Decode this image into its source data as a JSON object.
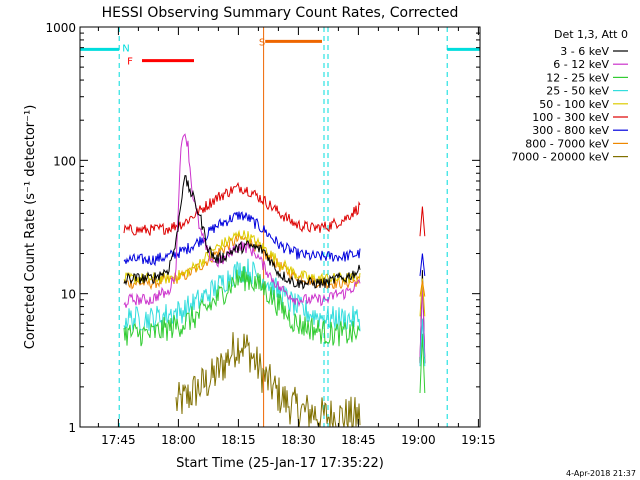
{
  "chart_data": {
    "type": "line",
    "title": "HESSI Observing Summary Count Rates, Corrected",
    "xlabel": "Start Time (25-Jan-17 17:35:22)",
    "ylabel": "Corrected Count Rate (s⁻¹ detector⁻¹)",
    "x_unit": "minutes after 17:35:22",
    "xlim": [
      0,
      100
    ],
    "ylim": [
      1,
      1000
    ],
    "y_scale": "log",
    "xticks": [
      {
        "x": 9.6,
        "label": "17:45"
      },
      {
        "x": 24.6,
        "label": "18:00"
      },
      {
        "x": 39.6,
        "label": "18:15"
      },
      {
        "x": 54.6,
        "label": "18:30"
      },
      {
        "x": 69.6,
        "label": "18:45"
      },
      {
        "x": 84.6,
        "label": "19:00"
      },
      {
        "x": 99.6,
        "label": "19:15"
      }
    ],
    "yticks": [
      {
        "y": 1,
        "label": "1"
      },
      {
        "y": 10,
        "label": "10"
      },
      {
        "y": 100,
        "label": "100"
      },
      {
        "y": 1000,
        "label": "1000"
      }
    ],
    "legend_header": "Det 1,3, Att 0",
    "legend_placement": "outside-right",
    "series": [
      {
        "name": "3 - 6 keV",
        "color": "#000000",
        "x": [
          11,
          12,
          13,
          18,
          20,
          22,
          24,
          26,
          28,
          30,
          32,
          34,
          36,
          38,
          40,
          42,
          44,
          46,
          48,
          50,
          52,
          54,
          56,
          58,
          60,
          62,
          64,
          66,
          68,
          70
        ],
        "y": [
          12,
          13,
          13,
          13,
          14,
          15,
          24,
          75,
          55,
          38,
          22,
          18,
          19,
          21,
          22,
          23,
          22,
          21,
          17,
          14,
          13,
          12,
          12,
          12,
          12,
          12,
          13,
          13,
          14,
          15
        ]
      },
      {
        "name": "6 - 12 keV",
        "color": "#cc33cc",
        "x": [
          11,
          12,
          13,
          18,
          20,
          22,
          24,
          25,
          26,
          27,
          28,
          30,
          32,
          34,
          36,
          38,
          40,
          42,
          44,
          46,
          48,
          50,
          52,
          54,
          56,
          58,
          60,
          62,
          64,
          66,
          68,
          70
        ],
        "y": [
          8,
          9,
          9,
          9,
          10,
          10,
          15,
          100,
          170,
          130,
          60,
          30,
          20,
          17,
          18,
          21,
          23,
          22,
          20,
          16,
          13,
          11,
          10,
          9,
          9,
          9,
          9,
          9,
          10,
          10,
          11,
          12
        ]
      },
      {
        "name": "12 - 25 keV",
        "color": "#33cc33",
        "x": [
          11,
          14,
          18,
          22,
          26,
          30,
          34,
          38,
          40,
          42,
          46,
          50,
          54,
          58,
          62,
          66,
          70
        ],
        "y": [
          5,
          5,
          5,
          5.5,
          6,
          7,
          9,
          12,
          13,
          13,
          11,
          8,
          6,
          5.5,
          5,
          5,
          5
        ]
      },
      {
        "name": "25 - 50 keV",
        "color": "#33dddd",
        "x": [
          11,
          14,
          18,
          22,
          26,
          30,
          34,
          38,
          40,
          42,
          46,
          50,
          54,
          58,
          62,
          66,
          70
        ],
        "y": [
          6.5,
          6.5,
          6.5,
          7,
          7.5,
          9,
          11,
          14,
          15,
          15,
          13,
          10,
          8,
          7,
          6.5,
          6.5,
          6.5
        ]
      },
      {
        "name": "50 - 100 keV",
        "color": "#ddcc00",
        "x": [
          11,
          14,
          18,
          22,
          26,
          30,
          34,
          38,
          40,
          42,
          46,
          50,
          54,
          58,
          62,
          66,
          70
        ],
        "y": [
          13,
          13,
          13,
          13,
          14,
          17,
          22,
          26,
          28,
          27,
          22,
          17,
          14,
          13,
          13,
          13,
          13
        ]
      },
      {
        "name": "100 - 300 keV",
        "color": "#dd0000",
        "x": [
          11,
          14,
          18,
          22,
          26,
          30,
          34,
          38,
          40,
          42,
          46,
          50,
          54,
          58,
          62,
          66,
          70
        ],
        "y": [
          30,
          30,
          30,
          31,
          34,
          42,
          52,
          60,
          63,
          60,
          50,
          40,
          33,
          31,
          32,
          36,
          45
        ]
      },
      {
        "name": "300 - 800 keV",
        "color": "#0000dd",
        "x": [
          11,
          14,
          18,
          22,
          26,
          30,
          34,
          38,
          40,
          42,
          46,
          50,
          54,
          58,
          62,
          66,
          70
        ],
        "y": [
          18,
          18,
          18,
          19,
          21,
          25,
          32,
          37,
          39,
          37,
          30,
          23,
          20,
          19,
          19,
          19,
          20
        ]
      },
      {
        "name": "800 - 7000 keV",
        "color": "#ee8800",
        "x": [
          11,
          14,
          18,
          22,
          26,
          30,
          34,
          38,
          40,
          42,
          46,
          50,
          54,
          58,
          62,
          66,
          70
        ],
        "y": [
          12,
          12,
          12,
          12.5,
          13.5,
          16,
          20,
          24,
          26,
          25,
          20,
          16,
          13.5,
          12.5,
          12,
          12,
          12.5
        ]
      },
      {
        "name": "7000 - 20000 keV",
        "color": "#807000",
        "x": [
          24,
          26,
          28,
          30,
          32,
          34,
          36,
          38,
          40,
          42,
          44,
          46,
          48,
          50,
          52,
          54,
          56,
          58,
          60,
          62,
          64,
          66,
          68,
          70
        ],
        "y": [
          1.5,
          1.6,
          1.8,
          2,
          2.2,
          2.5,
          3,
          3.7,
          4.3,
          3.8,
          3,
          2.4,
          2,
          1.7,
          1.5,
          1.4,
          1.3,
          1.3,
          1.2,
          1.2,
          1.2,
          1.2,
          1.2,
          1.2
        ]
      }
    ],
    "attenuator_lines": [
      {
        "y": 680,
        "x_ranges": [
          [
            0,
            9.8
          ],
          [
            91.8,
            100
          ]
        ],
        "color": "#00dddd"
      }
    ],
    "state_bars": [
      {
        "label": "N",
        "label_x": 11.5,
        "label_y": 700,
        "color": "#00dddd"
      },
      {
        "label": "F",
        "label_x": 12.5,
        "label_y": 560,
        "x_range": [
          15.5,
          28.5
        ],
        "y": 560,
        "color": "#ff0000"
      },
      {
        "label": "S",
        "label_x": 45.5,
        "label_y": 780,
        "x_range": [
          46.3,
          60.5
        ],
        "y": 780,
        "color": "#ee6600"
      }
    ],
    "vertical_lines": [
      {
        "x": 9.8,
        "style": "dashed",
        "color": "#00dddd"
      },
      {
        "x": 45.9,
        "style": "solid",
        "color": "#ee6600"
      },
      {
        "x": 61.0,
        "style": "dashed",
        "color": "#00dddd"
      },
      {
        "x": 62.0,
        "style": "dashed",
        "color": "#00dddd"
      },
      {
        "x": 91.8,
        "style": "dashed",
        "color": "#00dddd"
      }
    ],
    "footer": "4-Apr-2018 21:37"
  }
}
